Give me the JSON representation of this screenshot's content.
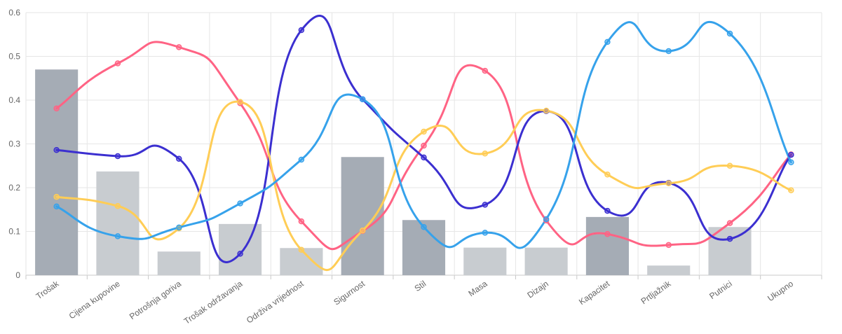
{
  "chart_data": {
    "type": "bar",
    "categories": [
      "Trošak",
      "Cijena kupovine",
      "Potrošnja goriva",
      "Trošak održavanja",
      "Održiva vrijednost",
      "Sigurnost",
      "Stil",
      "Masa",
      "Dizajn",
      "Kapacitet",
      "Prtljažnik",
      "Putnici",
      "Ukupno"
    ],
    "ylim": [
      0,
      0.6
    ],
    "yticks": [
      "0",
      "0.1",
      "0.2",
      "0.3",
      "0.4",
      "0.5",
      "0.6"
    ],
    "grid": true,
    "legend": "none",
    "bars": {
      "values": [
        0.47,
        0.237,
        0.054,
        0.117,
        0.062,
        0.27,
        0.126,
        0.063,
        0.063,
        0.133,
        0.022,
        0.11,
        null
      ],
      "colors": [
        "#a5acb5",
        "#c8ccd0",
        "#c8ccd0",
        "#c8ccd0",
        "#c8ccd0",
        "#a5acb5",
        "#a5acb5",
        "#c8ccd0",
        "#c8ccd0",
        "#a5acb5",
        "#c8ccd0",
        "#c8ccd0",
        null
      ]
    },
    "series": [
      {
        "type": "line",
        "color": "#ff6384",
        "values": [
          0.381,
          0.484,
          0.521,
          0.393,
          0.123,
          0.101,
          0.296,
          0.467,
          0.125,
          0.094,
          0.069,
          0.119,
          0.276
        ]
      },
      {
        "type": "line",
        "color": "#3b2fd0",
        "values": [
          0.286,
          0.272,
          0.266,
          0.049,
          0.56,
          0.402,
          0.269,
          0.161,
          0.375,
          0.147,
          0.211,
          0.083,
          0.275
        ]
      },
      {
        "type": "line",
        "color": "#ffcd56",
        "values": [
          0.179,
          0.158,
          0.107,
          0.396,
          0.058,
          0.102,
          0.328,
          0.278,
          0.376,
          0.23,
          0.21,
          0.25,
          0.194
        ]
      },
      {
        "type": "line",
        "color": "#36a2eb",
        "values": [
          0.157,
          0.089,
          0.109,
          0.164,
          0.264,
          0.402,
          0.11,
          0.097,
          0.128,
          0.533,
          0.512,
          0.552,
          0.258
        ]
      }
    ]
  }
}
